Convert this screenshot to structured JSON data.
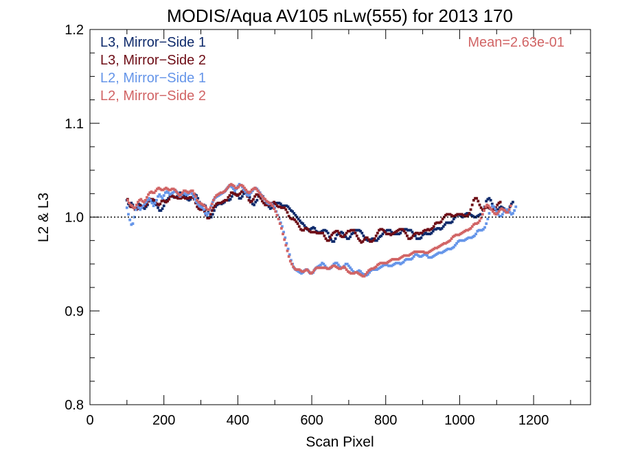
{
  "chart_data": {
    "type": "scatter",
    "title": "MODIS/Aqua AV105 nLw(555) for 2013 170",
    "xlabel": "Scan Pixel",
    "ylabel": "L2 & L3",
    "xlim": [
      0,
      1354
    ],
    "ylim": [
      0.8,
      1.2
    ],
    "x_ticks": [
      "0",
      "200",
      "400",
      "600",
      "800",
      "1000",
      "1200"
    ],
    "y_ticks": [
      "0.8",
      "0.9",
      "1.0",
      "1.1",
      "1.2"
    ],
    "reference_line": 1.0,
    "annotation": "Mean=2.63e-01",
    "annotation_color": "#d16465",
    "legend_position": "top-left",
    "x_step": 4,
    "series": [
      {
        "name": "L3, Mirror−Side 1",
        "color": "#0e2a6b",
        "x_start": 100,
        "values": [
          1.018,
          1.014,
          1.012,
          1.015,
          1.013,
          1.01,
          1.01,
          1.012,
          1.014,
          1.013,
          1.011,
          1.01,
          1.009,
          1.011,
          1.013,
          1.017,
          1.018,
          1.017,
          1.016,
          1.014,
          1.013,
          1.01,
          1.007,
          1.007,
          1.009,
          1.012,
          1.016,
          1.018,
          1.02,
          1.023,
          1.024,
          1.022,
          1.021,
          1.021,
          1.022,
          1.024,
          1.026,
          1.025,
          1.024,
          1.023,
          1.022,
          1.019,
          1.018,
          1.019,
          1.021,
          1.024,
          1.024,
          1.023,
          1.02,
          1.016,
          1.013,
          1.012,
          1.013,
          1.012,
          1.008,
          1.005,
          1.0,
          1.0,
          1.003,
          1.007,
          1.011,
          1.013,
          1.014,
          1.015,
          1.014,
          1.015,
          1.016,
          1.018,
          1.018,
          1.018,
          1.019,
          1.022,
          1.025,
          1.025,
          1.024,
          1.023,
          1.02,
          1.02,
          1.022,
          1.025,
          1.027,
          1.027,
          1.025,
          1.021,
          1.017,
          1.014,
          1.013,
          1.016,
          1.018,
          1.022,
          1.023,
          1.023,
          1.022,
          1.019,
          1.016,
          1.013,
          1.011,
          1.009,
          1.01,
          1.012,
          1.014,
          1.015,
          1.015,
          1.015,
          1.014,
          1.012,
          1.012,
          1.012,
          1.012,
          1.011,
          1.009,
          1.007,
          1.006,
          1.004,
          1.002,
          1.0,
          0.998,
          0.996,
          0.994,
          0.993,
          0.991,
          0.989,
          0.987,
          0.986,
          0.987,
          0.988,
          0.989,
          0.988,
          0.985,
          0.984,
          0.983,
          0.984,
          0.985,
          0.986,
          0.986,
          0.985,
          0.983,
          0.979,
          0.976,
          0.974,
          0.974,
          0.977,
          0.981,
          0.982,
          0.983,
          0.984,
          0.983,
          0.981,
          0.979,
          0.977,
          0.977,
          0.979,
          0.982,
          0.983,
          0.986,
          0.986,
          0.986,
          0.986,
          0.985,
          0.983,
          0.98,
          0.978,
          0.976,
          0.975,
          0.975,
          0.976,
          0.977,
          0.976,
          0.975,
          0.975,
          0.977,
          0.979,
          0.98,
          0.982,
          0.984,
          0.985,
          0.986,
          0.986,
          0.986,
          0.984,
          0.983,
          0.982,
          0.982,
          0.982,
          0.982,
          0.983,
          0.986,
          0.986,
          0.987,
          0.987,
          0.986,
          0.986,
          0.986,
          0.984,
          0.982,
          0.98,
          0.977,
          0.977,
          0.977,
          0.978,
          0.981,
          0.982,
          0.983,
          0.982,
          0.982,
          0.982,
          0.983,
          0.985,
          0.987,
          0.987,
          0.988,
          0.988,
          0.987,
          0.988,
          0.99,
          0.992,
          0.994,
          0.994,
          0.994,
          0.994,
          0.995,
          0.998,
          1.0,
          1.002,
          1.003,
          1.002,
          1.001,
          1.0,
          1.002,
          1.003,
          1.004,
          1.004,
          1.003,
          1.002,
          1.001,
          1.0,
          1.0,
          1.001,
          1.002,
          1.003,
          1.003,
          1.007,
          1.011,
          1.017,
          1.019,
          1.02,
          1.018,
          1.014,
          1.011,
          1.008,
          1.007,
          1.008,
          1.01,
          1.011,
          1.01,
          1.009,
          1.008,
          1.007,
          1.008,
          1.011,
          1.014,
          1.016
        ]
      },
      {
        "name": "L3, Mirror−Side 2",
        "color": "#6e0d16",
        "x_start": 102,
        "values": [
          1.019,
          1.015,
          1.011,
          1.011,
          1.01,
          1.008,
          1.008,
          1.009,
          1.012,
          1.012,
          1.011,
          1.012,
          1.012,
          1.014,
          1.017,
          1.019,
          1.019,
          1.019,
          1.018,
          1.015,
          1.014,
          1.013,
          1.014,
          1.017,
          1.018,
          1.017,
          1.016,
          1.017,
          1.019,
          1.022,
          1.023,
          1.022,
          1.021,
          1.021,
          1.02,
          1.02,
          1.02,
          1.021,
          1.021,
          1.02,
          1.02,
          1.02,
          1.021,
          1.021,
          1.021,
          1.019,
          1.015,
          1.011,
          1.009,
          1.008,
          1.008,
          1.008,
          1.006,
          1.002,
          0.999,
          0.999,
          1.003,
          1.007,
          1.01,
          1.012,
          1.014,
          1.015,
          1.015,
          1.015,
          1.016,
          1.017,
          1.018,
          1.018,
          1.021,
          1.023,
          1.026,
          1.026,
          1.025,
          1.024,
          1.023,
          1.024,
          1.025,
          1.027,
          1.028,
          1.027,
          1.026,
          1.022,
          1.018,
          1.016,
          1.017,
          1.019,
          1.022,
          1.024,
          1.024,
          1.022,
          1.02,
          1.017,
          1.015,
          1.013,
          1.013,
          1.013,
          1.013,
          1.013,
          1.015,
          1.016,
          1.014,
          1.012,
          1.011,
          1.011,
          1.01,
          1.01,
          1.01,
          1.008,
          1.005,
          1.001,
          0.999,
          0.998,
          0.998,
          0.997,
          0.995,
          0.993,
          0.99,
          0.987,
          0.986,
          0.986,
          0.988,
          0.988,
          0.987,
          0.985,
          0.984,
          0.984,
          0.984,
          0.984,
          0.983,
          0.983,
          0.983,
          0.983,
          0.983,
          0.98,
          0.977,
          0.975,
          0.975,
          0.978,
          0.981,
          0.983,
          0.984,
          0.985,
          0.985,
          0.983,
          0.98,
          0.979,
          0.979,
          0.981,
          0.983,
          0.985,
          0.985,
          0.986,
          0.986,
          0.986,
          0.983,
          0.98,
          0.977,
          0.975,
          0.973,
          0.974,
          0.976,
          0.978,
          0.978,
          0.976,
          0.974,
          0.974,
          0.975,
          0.977,
          0.98,
          0.983,
          0.986,
          0.987,
          0.987,
          0.986,
          0.984,
          0.982,
          0.982,
          0.982,
          0.981,
          0.982,
          0.983,
          0.984,
          0.985,
          0.986,
          0.987,
          0.987,
          0.987,
          0.985,
          0.983,
          0.98,
          0.977,
          0.977,
          0.978,
          0.98,
          0.982,
          0.983,
          0.983,
          0.982,
          0.983,
          0.983,
          0.985,
          0.986,
          0.986,
          0.987,
          0.986,
          0.987,
          0.988,
          0.99,
          0.993,
          0.994,
          0.994,
          0.994,
          0.995,
          0.998,
          1.0,
          1.002,
          1.003,
          1.003,
          1.003,
          1.002,
          1.001,
          1.001,
          1.002,
          1.003,
          1.003,
          1.003,
          1.003,
          1.002,
          1.001,
          1.001,
          1.002,
          1.004,
          1.008,
          1.013,
          1.018,
          1.02,
          1.02,
          1.017,
          1.013,
          1.01,
          1.008,
          1.008,
          1.01,
          1.011,
          1.01,
          1.009,
          1.008,
          1.008,
          1.008,
          1.01,
          1.013,
          1.015,
          1.016
        ]
      },
      {
        "name": "L2, Mirror−Side 1",
        "color": "#6595e9",
        "x_start": 100,
        "values": [
          1.01,
          1.003,
          0.997,
          0.992,
          0.993,
          1.0,
          1.008,
          1.012,
          1.01,
          1.008,
          1.01,
          1.012,
          1.014,
          1.016,
          1.018,
          1.02,
          1.018,
          1.015,
          1.012,
          1.015,
          1.018,
          1.022,
          1.024,
          1.022,
          1.02,
          1.023,
          1.026,
          1.027,
          1.026,
          1.024,
          1.025,
          1.026,
          1.027,
          1.028,
          1.026,
          1.024,
          1.022,
          1.024,
          1.026,
          1.025,
          1.024,
          1.024,
          1.025,
          1.027,
          1.025,
          1.022,
          1.019,
          1.016,
          1.014,
          1.012,
          1.011,
          1.01,
          1.008,
          1.004,
          1.002,
          1.004,
          1.008,
          1.012,
          1.016,
          1.019,
          1.021,
          1.022,
          1.023,
          1.024,
          1.025,
          1.026,
          1.027,
          1.029,
          1.031,
          1.033,
          1.033,
          1.032,
          1.03,
          1.028,
          1.03,
          1.033,
          1.035,
          1.034,
          1.032,
          1.029,
          1.027,
          1.024,
          1.023,
          1.024,
          1.026,
          1.028,
          1.03,
          1.031,
          1.03,
          1.028,
          1.026,
          1.023,
          1.021,
          1.019,
          1.017,
          1.015,
          1.014,
          1.015,
          1.014,
          1.012,
          1.01,
          1.006,
          1.002,
          0.998,
          0.994,
          0.99,
          0.984,
          0.978,
          0.972,
          0.966,
          0.96,
          0.954,
          0.95,
          0.946,
          0.944,
          0.943,
          0.942,
          0.941,
          0.94,
          0.941,
          0.943,
          0.944,
          0.944,
          0.942,
          0.94,
          0.94,
          0.941,
          0.944,
          0.946,
          0.947,
          0.948,
          0.949,
          0.951,
          0.95,
          0.948,
          0.946,
          0.945,
          0.945,
          0.946,
          0.948,
          0.95,
          0.951,
          0.951,
          0.949,
          0.947,
          0.946,
          0.946,
          0.948,
          0.95,
          0.95,
          0.948,
          0.946,
          0.944,
          0.942,
          0.941,
          0.941,
          0.942,
          0.943,
          0.942,
          0.94,
          0.939,
          0.938,
          0.938,
          0.939,
          0.941,
          0.943,
          0.944,
          0.944,
          0.944,
          0.944,
          0.945,
          0.946,
          0.947,
          0.948,
          0.949,
          0.949,
          0.949,
          0.948,
          0.948,
          0.948,
          0.949,
          0.95,
          0.951,
          0.951,
          0.951,
          0.95,
          0.951,
          0.952,
          0.954,
          0.955,
          0.955,
          0.955,
          0.955,
          0.956,
          0.958,
          0.96,
          0.96,
          0.959,
          0.958,
          0.958,
          0.959,
          0.96,
          0.96,
          0.959,
          0.957,
          0.957,
          0.957,
          0.958,
          0.959,
          0.96,
          0.961,
          0.962,
          0.962,
          0.962,
          0.963,
          0.964,
          0.965,
          0.966,
          0.966,
          0.966,
          0.967,
          0.968,
          0.97,
          0.972,
          0.974,
          0.975,
          0.975,
          0.975,
          0.975,
          0.976,
          0.977,
          0.978,
          0.978,
          0.978,
          0.979,
          0.98,
          0.982,
          0.985,
          0.986,
          0.986,
          0.986,
          0.987,
          0.989,
          0.993,
          0.998,
          1.004,
          1.009,
          1.012,
          1.011,
          1.009,
          1.006,
          1.003,
          1.001,
          1.001,
          1.003,
          1.006,
          1.008,
          1.008,
          1.007,
          1.005,
          1.003,
          1.004,
          1.007,
          1.011
        ]
      },
      {
        "name": "L2, Mirror−Side 2",
        "color": "#d16465",
        "x_start": 102,
        "values": [
          1.018,
          1.015,
          1.013,
          1.012,
          1.01,
          1.01,
          1.013,
          1.016,
          1.018,
          1.019,
          1.017,
          1.016,
          1.018,
          1.021,
          1.024,
          1.026,
          1.027,
          1.026,
          1.026,
          1.028,
          1.03,
          1.031,
          1.03,
          1.029,
          1.029,
          1.03,
          1.031,
          1.03,
          1.029,
          1.029,
          1.03,
          1.03,
          1.029,
          1.027,
          1.025,
          1.023,
          1.024,
          1.026,
          1.028,
          1.028,
          1.027,
          1.026,
          1.027,
          1.028,
          1.028,
          1.025,
          1.022,
          1.018,
          1.016,
          1.015,
          1.014,
          1.013,
          1.012,
          1.01,
          1.008,
          1.008,
          1.01,
          1.014,
          1.018,
          1.021,
          1.023,
          1.024,
          1.025,
          1.026,
          1.026,
          1.027,
          1.028,
          1.03,
          1.032,
          1.034,
          1.035,
          1.034,
          1.033,
          1.031,
          1.031,
          1.032,
          1.034,
          1.034,
          1.033,
          1.031,
          1.029,
          1.027,
          1.026,
          1.027,
          1.029,
          1.03,
          1.031,
          1.03,
          1.028,
          1.026,
          1.024,
          1.022,
          1.02,
          1.019,
          1.017,
          1.016,
          1.015,
          1.014,
          1.012,
          1.009,
          1.006,
          1.002,
          0.998,
          0.993,
          0.988,
          0.982,
          0.976,
          0.97,
          0.964,
          0.958,
          0.953,
          0.95,
          0.947,
          0.945,
          0.944,
          0.944,
          0.944,
          0.943,
          0.942,
          0.942,
          0.943,
          0.944,
          0.943,
          0.941,
          0.94,
          0.941,
          0.943,
          0.945,
          0.946,
          0.946,
          0.946,
          0.946,
          0.946,
          0.946,
          0.946,
          0.945,
          0.945,
          0.946,
          0.947,
          0.948,
          0.948,
          0.947,
          0.946,
          0.945,
          0.945,
          0.946,
          0.947,
          0.946,
          0.944,
          0.942,
          0.941,
          0.94,
          0.94,
          0.94,
          0.941,
          0.941,
          0.94,
          0.939,
          0.938,
          0.937,
          0.937,
          0.939,
          0.941,
          0.943,
          0.944,
          0.945,
          0.945,
          0.946,
          0.947,
          0.949,
          0.95,
          0.951,
          0.951,
          0.951,
          0.951,
          0.951,
          0.952,
          0.953,
          0.954,
          0.955,
          0.955,
          0.955,
          0.955,
          0.955,
          0.956,
          0.957,
          0.958,
          0.959,
          0.959,
          0.959,
          0.959,
          0.96,
          0.961,
          0.962,
          0.963,
          0.963,
          0.963,
          0.963,
          0.963,
          0.963,
          0.963,
          0.962,
          0.962,
          0.962,
          0.963,
          0.964,
          0.965,
          0.966,
          0.967,
          0.967,
          0.968,
          0.969,
          0.97,
          0.971,
          0.972,
          0.972,
          0.973,
          0.974,
          0.975,
          0.977,
          0.979,
          0.98,
          0.981,
          0.981,
          0.981,
          0.982,
          0.983,
          0.984,
          0.985,
          0.986,
          0.986,
          0.987,
          0.988,
          0.99,
          0.992,
          0.993,
          0.993,
          0.994,
          0.996,
          0.999,
          1.003,
          1.007,
          1.011,
          1.013,
          1.012,
          1.01,
          1.008,
          1.006,
          1.004,
          1.003,
          1.004,
          1.006,
          1.008,
          1.009,
          1.008,
          1.007,
          1.005,
          1.005,
          1.008,
          1.012
        ]
      }
    ]
  }
}
